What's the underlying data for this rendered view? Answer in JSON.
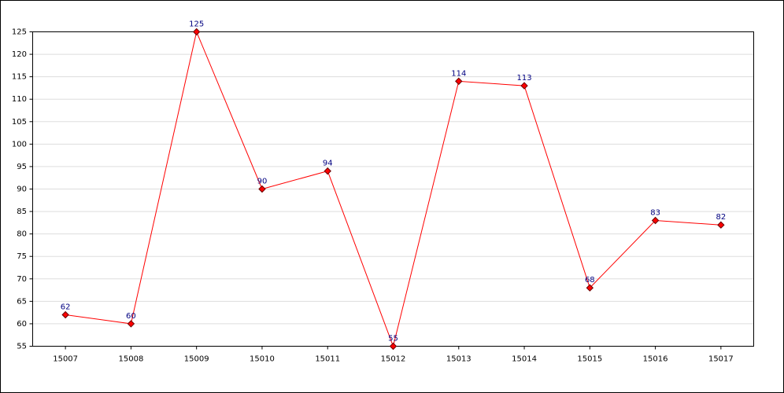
{
  "chart_data": {
    "type": "line",
    "categories": [
      "15007",
      "15008",
      "15009",
      "15010",
      "15011",
      "15012",
      "15013",
      "15014",
      "15015",
      "15016",
      "15017"
    ],
    "series": [
      {
        "color": "#ff0000",
        "values": [
          62,
          60,
          125,
          90,
          94,
          55,
          114,
          113,
          68,
          83,
          82
        ]
      }
    ],
    "ylim": [
      55,
      125
    ],
    "yticks": [
      55,
      60,
      65,
      70,
      75,
      80,
      85,
      90,
      95,
      100,
      105,
      110,
      115,
      120,
      125
    ],
    "grid": true,
    "value_label_color": "#000080"
  }
}
